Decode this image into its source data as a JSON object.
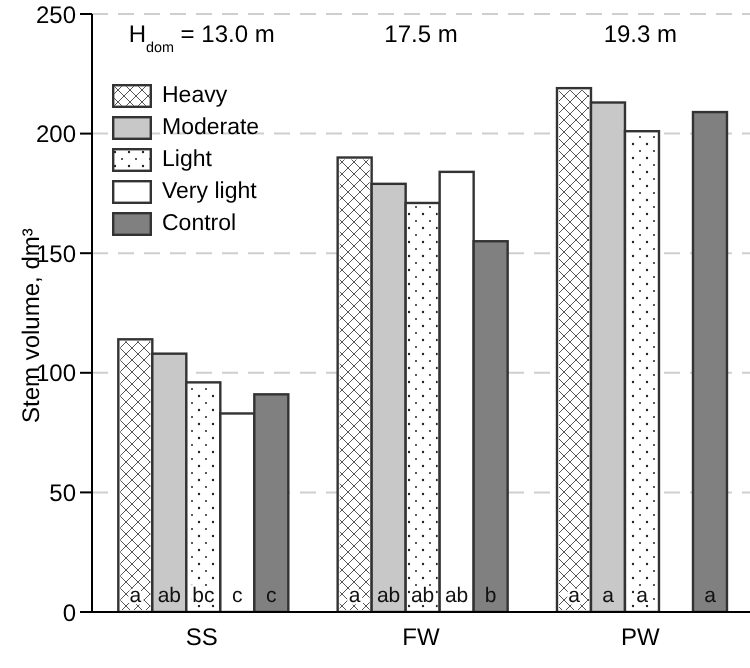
{
  "chart_data": {
    "type": "bar",
    "ylabel": "Stem volume, dm³",
    "categories": [
      "SS",
      "FW",
      "PW"
    ],
    "series": [
      {
        "name": "Heavy",
        "color": "#ffffff",
        "values": [
          114,
          190,
          219
        ],
        "value_labels": [
          "a",
          "a",
          "a"
        ]
      },
      {
        "name": "Moderate",
        "color": "#c8c8c8",
        "values": [
          108,
          179,
          213
        ],
        "value_labels": [
          "ab",
          "ab",
          "a"
        ]
      },
      {
        "name": "Light",
        "color": "#ffffff",
        "values": [
          96,
          171,
          201
        ],
        "value_labels": [
          "bc",
          "ab",
          "a"
        ]
      },
      {
        "name": "Very light",
        "color": "#ffffff",
        "values": [
          83,
          184,
          null
        ],
        "value_labels": [
          "c",
          "ab",
          null
        ]
      },
      {
        "name": "Control",
        "color": "#808080",
        "values": [
          91,
          155,
          209
        ],
        "value_labels": [
          "c",
          "b",
          "a"
        ]
      }
    ],
    "ylim": [
      0,
      250
    ],
    "yticks": [
      0,
      50,
      100,
      150,
      200,
      250
    ],
    "grid": "y",
    "legend": "top left",
    "annotations": [
      "H$_{dom}$ = 13.0 m",
      "17.5 m",
      "19.3 m"
    ]
  }
}
